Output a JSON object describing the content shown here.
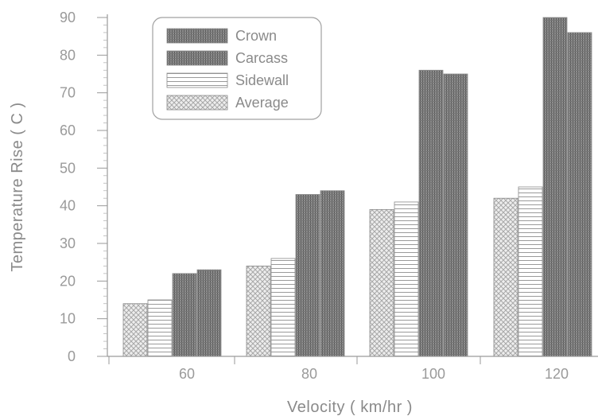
{
  "chart_data": {
    "type": "bar",
    "xlabel": "Velocity ( km/hr )",
    "ylabel": "Temperature Rise ( C )",
    "categories": [
      "60",
      "80",
      "100",
      "120"
    ],
    "ylim": [
      0,
      90
    ],
    "yticks": [
      0,
      10,
      20,
      30,
      40,
      50,
      60,
      70,
      80,
      90
    ],
    "grid": false,
    "legend_position": "top-left",
    "series": [
      {
        "name": "Average",
        "pattern": "crosshatch",
        "values": [
          14,
          24,
          39,
          42
        ]
      },
      {
        "name": "Sidewall",
        "pattern": "horizontal",
        "values": [
          15,
          26,
          41,
          45
        ]
      },
      {
        "name": "Carcass",
        "pattern": "dark",
        "values": [
          22,
          43,
          76,
          90
        ]
      },
      {
        "name": "Crown",
        "pattern": "dark",
        "values": [
          23,
          44,
          75,
          86
        ]
      }
    ],
    "legend_order": [
      "Crown",
      "Carcass",
      "Sidewall",
      "Average"
    ]
  }
}
